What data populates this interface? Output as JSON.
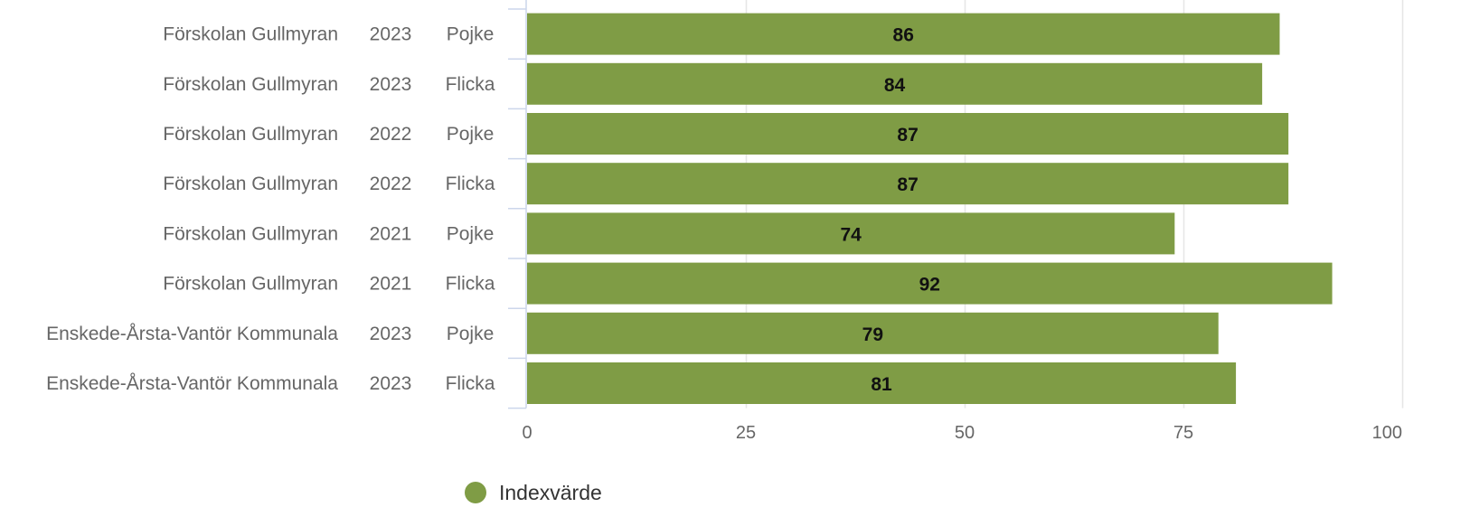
{
  "chart_data": {
    "type": "bar",
    "orientation": "horizontal",
    "categories": [
      [
        "Förskolan Gullmyran",
        "2023",
        "Pojke"
      ],
      [
        "Förskolan Gullmyran",
        "2023",
        "Flicka"
      ],
      [
        "Förskolan Gullmyran",
        "2022",
        "Pojke"
      ],
      [
        "Förskolan Gullmyran",
        "2022",
        "Flicka"
      ],
      [
        "Förskolan Gullmyran",
        "2021",
        "Pojke"
      ],
      [
        "Förskolan Gullmyran",
        "2021",
        "Flicka"
      ],
      [
        "Enskede-Årsta-Vantör Kommunala",
        "2023",
        "Pojke"
      ],
      [
        "Enskede-Årsta-Vantör Kommunala",
        "2023",
        "Flicka"
      ]
    ],
    "series": [
      {
        "name": "Indexvärde",
        "color": "#7f9c45",
        "values": [
          86,
          84,
          87,
          87,
          74,
          92,
          79,
          81
        ],
        "labels": [
          "86",
          "84",
          "87",
          "87",
          "74",
          "92",
          "79",
          "81"
        ]
      }
    ],
    "xlim": [
      0,
      100
    ],
    "xticks": [
      0,
      25,
      50,
      75,
      100
    ],
    "xtick_labels": [
      "0",
      "25",
      "50",
      "75",
      "100"
    ],
    "grid": true,
    "legend_position": "bottom-center",
    "title": "",
    "xlabel": "",
    "ylabel": ""
  }
}
